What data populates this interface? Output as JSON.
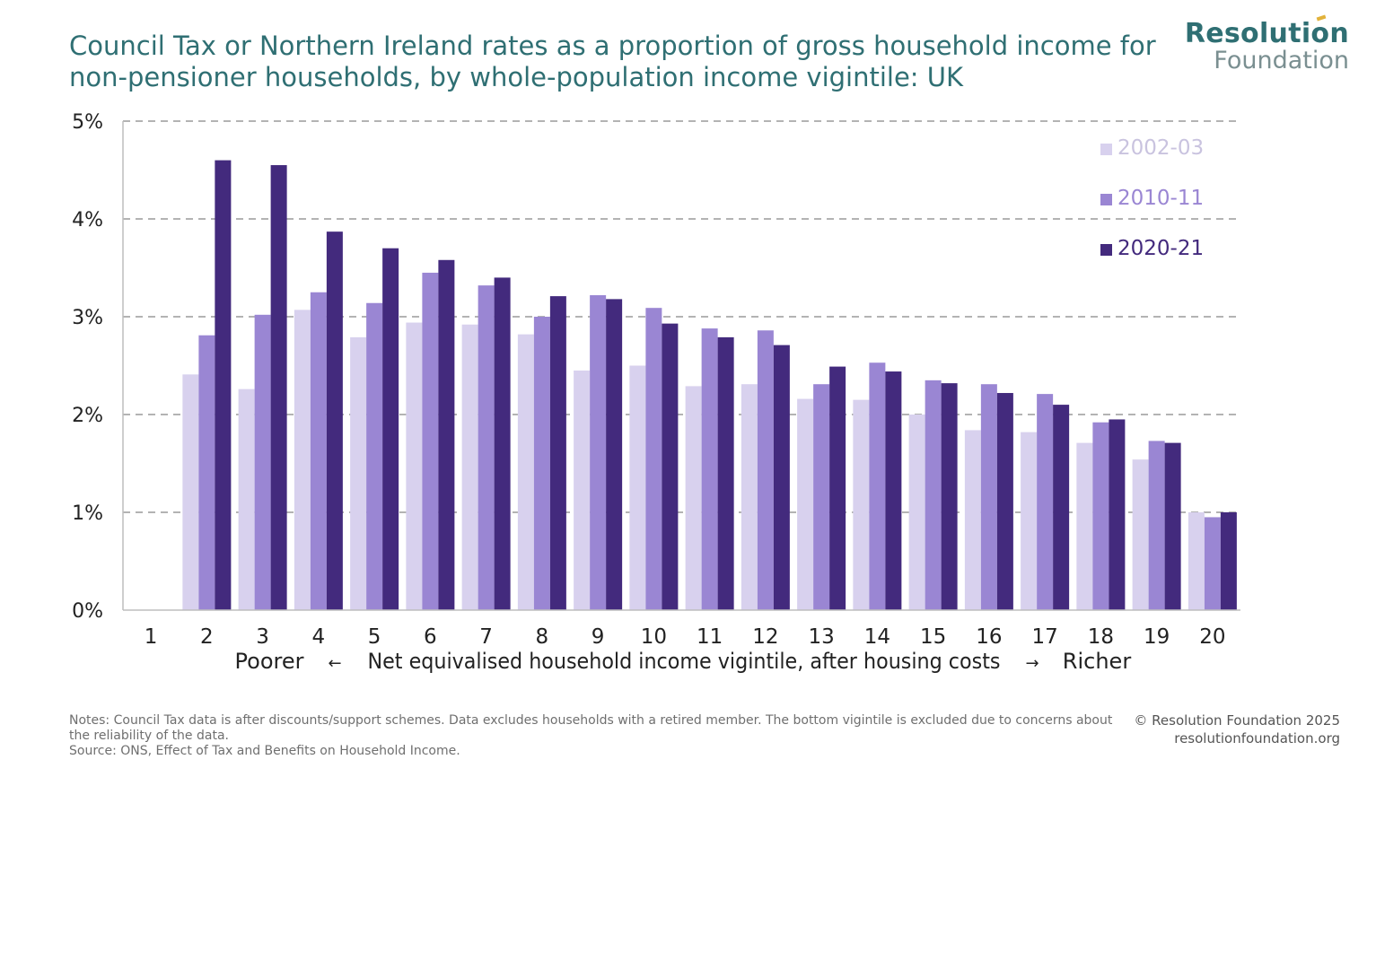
{
  "title": "Council Tax or Northern Ireland rates as a proportion of gross household income for non-pensioner households, by whole-population income vigintile: UK",
  "logo": {
    "line1": "Resolution",
    "line2": "Foundation"
  },
  "colors": {
    "series_2002": "#d8d1ee",
    "series_2010": "#9a86d3",
    "series_2020": "#432a7d",
    "title": "#2f6f73",
    "grid": "#9a9a9a"
  },
  "chart_data": {
    "type": "bar",
    "categories": [
      "1",
      "2",
      "3",
      "4",
      "5",
      "6",
      "7",
      "8",
      "9",
      "10",
      "11",
      "12",
      "13",
      "14",
      "15",
      "16",
      "17",
      "18",
      "19",
      "20"
    ],
    "series": [
      {
        "name": "2002-03",
        "values": [
          null,
          2.41,
          2.26,
          3.07,
          2.79,
          2.94,
          2.92,
          2.82,
          2.45,
          2.5,
          2.29,
          2.31,
          2.16,
          2.15,
          2.0,
          1.84,
          1.82,
          1.71,
          1.54,
          1.0
        ]
      },
      {
        "name": "2010-11",
        "values": [
          null,
          2.81,
          3.02,
          3.25,
          3.14,
          3.45,
          3.32,
          3.0,
          3.22,
          3.09,
          2.88,
          2.86,
          2.31,
          2.53,
          2.35,
          2.31,
          2.21,
          1.92,
          1.73,
          0.95
        ]
      },
      {
        "name": "2020-21",
        "values": [
          null,
          4.6,
          4.55,
          3.87,
          3.7,
          3.58,
          3.4,
          3.21,
          3.18,
          2.93,
          2.79,
          2.71,
          2.49,
          2.44,
          2.32,
          2.22,
          2.1,
          1.95,
          1.71,
          1.0
        ]
      }
    ],
    "ylim": [
      0,
      5
    ],
    "yticks": [
      "0%",
      "1%",
      "2%",
      "3%",
      "4%",
      "5%"
    ],
    "xlabel": {
      "left": "Poorer",
      "left_arrow": "←",
      "middle": "Net equivalised household income vigintile, after housing costs",
      "right_arrow": "→",
      "right": "Richer"
    },
    "legend_position": "top-right",
    "grid": true
  },
  "notes": {
    "line1": "Notes: Council Tax data is after discounts/support schemes. Data excludes households with a retired member. The bottom vigintile is excluded due to concerns about the reliability of the data.",
    "line2": "Source: ONS, Effect of Tax and Benefits on Household Income."
  },
  "copyright": {
    "line1": "© Resolution Foundation 2025",
    "line2": "resolutionfoundation.org"
  }
}
